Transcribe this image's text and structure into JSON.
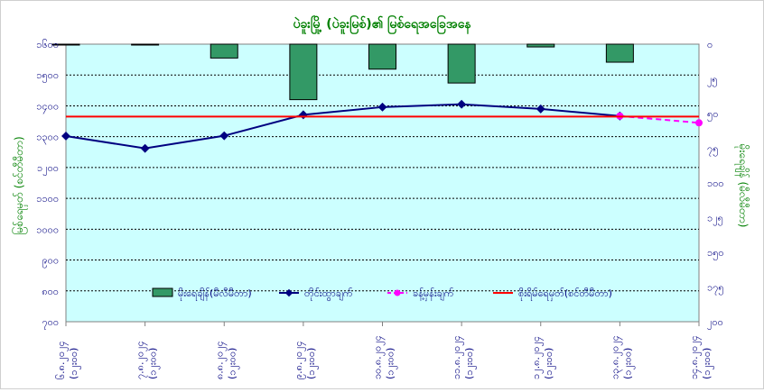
{
  "chart_data": {
    "type": "bar+line",
    "title": "ပဲခူးမြို့ (ပဲခူးမြစ်)၏ မြစ်ရေအခြေအနေ",
    "ylabel_left": "မြစ်ရေမှတ် (စင်တီမီတာ)",
    "ylabel_right": "မိုးရေချိန် (မီလီမီတာ)",
    "left_axis": {
      "min": 700,
      "max": 1600,
      "ticks": [
        "၇၀၀",
        "၈၀၀",
        "၉၀၀",
        "၁၀၀၀",
        "၁၁၀၀",
        "၁၂၀၀",
        "၁၃၀၀",
        "၁၄၀၀",
        "၁၅၀၀",
        "၁၆၀၀"
      ]
    },
    "right_axis": {
      "min": 0,
      "max": 200,
      "inverted": true,
      "ticks": [
        "၀",
        "၂၅",
        "၅၀",
        "၇၅",
        "၁၀၀",
        "၁၂၅",
        "၁၅၀",
        "၁၇၅",
        "၂၀၀"
      ]
    },
    "categories": [
      {
        "date": "၆.၈.၂၀၂၄",
        "time": "(၁၂း၀၀)"
      },
      {
        "date": "၇.၈.၂၀၂၄",
        "time": "(၁၂း၀၀)"
      },
      {
        "date": "၈.၈.၂၀၂၄",
        "time": "(၁၂း၀၀)"
      },
      {
        "date": "၉.၈.၂၀၂၄",
        "time": "(၁၂း၀၀)"
      },
      {
        "date": "၁၀.၈.၂၀၂၄",
        "time": "(၁၂း၀၀)"
      },
      {
        "date": "၁၁.၈.၂၀၂၄",
        "time": "(၁၂း၀၀)"
      },
      {
        "date": "၁၂.၈.၂၀၂၄",
        "time": "(၁၂း၀၀)"
      },
      {
        "date": "၁၃.၈.၂၀၂၄",
        "time": "(၁၂း၀၀)"
      },
      {
        "date": "၁၄.၈.၂၀၂၄",
        "time": "(၁၂း၀၀)"
      }
    ],
    "series": [
      {
        "name": "မိုးရေချိန်(မီလီမီတာ)",
        "kind": "bar",
        "axis": "right",
        "color": "#339966",
        "values": [
          0.5,
          0.5,
          10,
          40,
          18,
          28,
          2,
          13,
          null
        ]
      },
      {
        "name": "တိုင်းထွာချက်",
        "kind": "line",
        "axis": "left",
        "color": "#000080",
        "values": [
          1302,
          1262,
          1303,
          1371,
          1396,
          1405,
          1390,
          1367,
          null
        ]
      },
      {
        "name": "ခန့်မှန်းချက်",
        "kind": "line-dashed",
        "axis": "left",
        "color": "#ff00ff",
        "values": [
          null,
          null,
          null,
          null,
          null,
          null,
          null,
          1367,
          1345
        ]
      },
      {
        "name": "စိုးရိမ်ရေမှတ်(စင်တီမီတာ)",
        "kind": "hline",
        "axis": "left",
        "color": "#ff0000",
        "value": 1365
      }
    ],
    "grid": true,
    "legend": "bottom-center"
  }
}
